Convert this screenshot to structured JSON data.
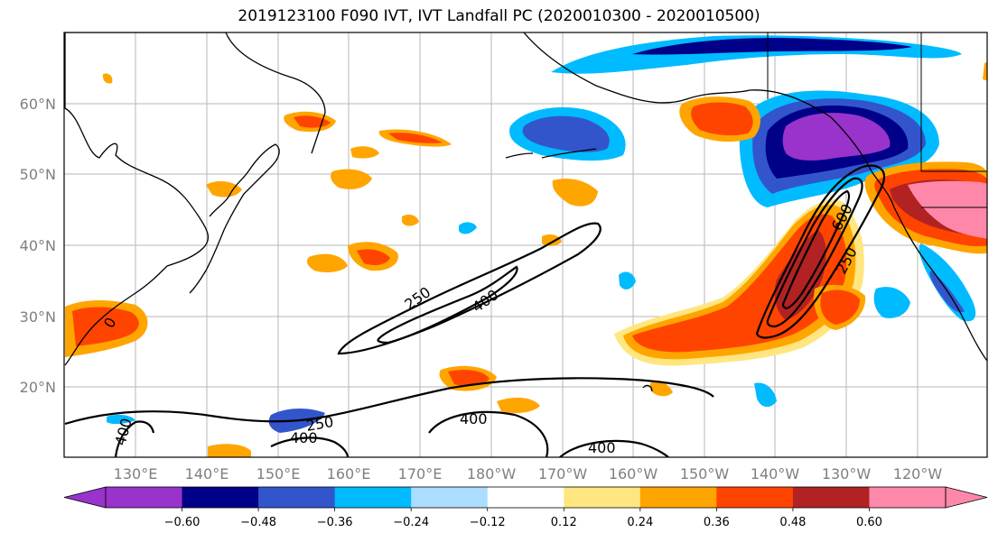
{
  "title": "2019123100 F090 IVT, IVT Landfall PC (2020010300 - 2020010500)",
  "map": {
    "lat_ticks": [
      "60°N",
      "50°N",
      "40°N",
      "30°N",
      "20°N"
    ],
    "lon_ticks": [
      "130°E",
      "140°E",
      "150°E",
      "160°E",
      "170°E",
      "180°W",
      "170°W",
      "160°W",
      "150°W",
      "140°W",
      "130°W",
      "120°W"
    ],
    "ivt_contour_labels": [
      "250",
      "400",
      "600",
      "250",
      "400",
      "250",
      "400",
      "400",
      "400",
      "0"
    ]
  },
  "colorbar": {
    "tick_labels": [
      "-0.60",
      "-0.48",
      "-0.36",
      "-0.24",
      "-0.12",
      "0.12",
      "0.24",
      "0.36",
      "0.48",
      "0.60"
    ],
    "colors": [
      "#9933cc",
      "#000088",
      "#3355cc",
      "#00bbff",
      "#aaddff",
      "#ffffff",
      "#ffe680",
      "#ffa500",
      "#ff4400",
      "#b22222",
      "#ff88aa"
    ]
  }
}
